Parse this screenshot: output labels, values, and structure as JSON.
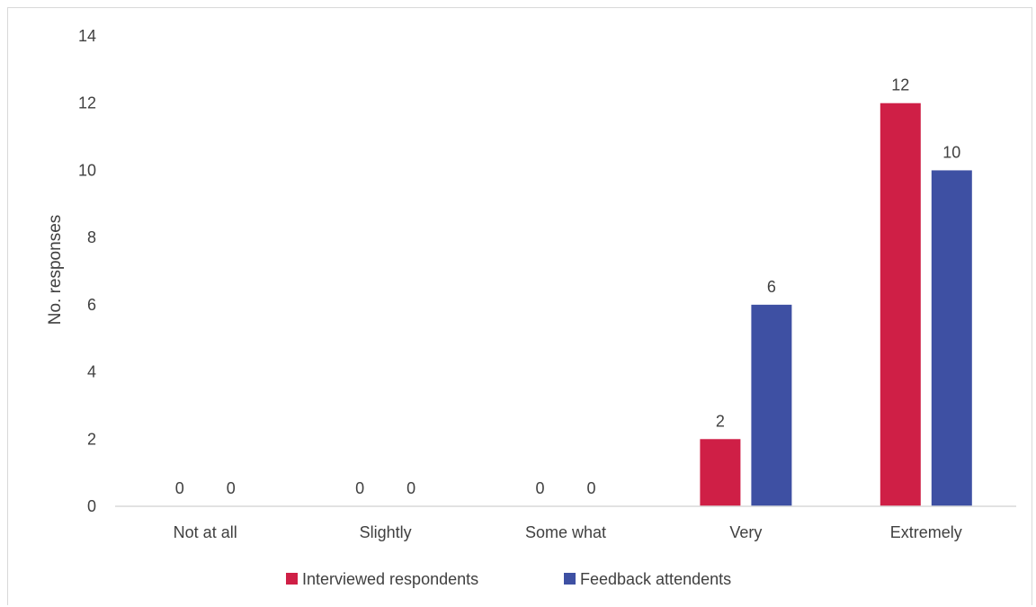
{
  "chart_data": {
    "type": "bar",
    "title": "",
    "xlabel": "",
    "ylabel": "No. responses",
    "ylim": [
      0,
      14
    ],
    "yticks": [
      0,
      2,
      4,
      6,
      8,
      10,
      12,
      14
    ],
    "categories": [
      "Not at all",
      "Slightly",
      "Some what",
      "Very",
      "Extremely"
    ],
    "series": [
      {
        "name": "Interviewed respondents",
        "color": "#cf1f46",
        "values": [
          0,
          0,
          0,
          2,
          12
        ]
      },
      {
        "name": "Feedback attendents",
        "color": "#3e50a3",
        "values": [
          0,
          0,
          0,
          6,
          10
        ]
      }
    ],
    "grid": false,
    "legend_position": "bottom",
    "data_labels": true
  }
}
